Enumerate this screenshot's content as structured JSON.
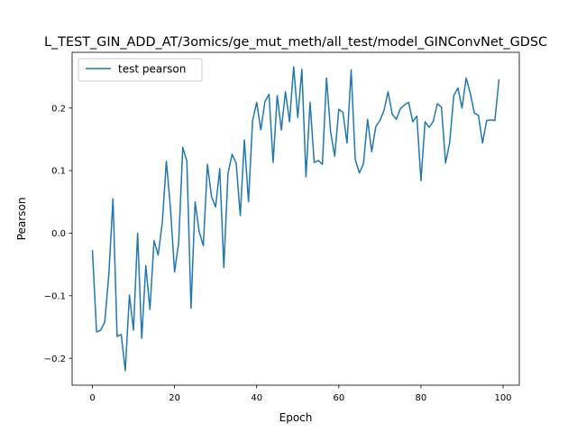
{
  "chart_data": {
    "type": "line",
    "title": "L_TEST_GIN_ADD_AT/3omics/ge_mut_meth/all_test/model_GINConvNet_GDSC",
    "xlabel": "Epoch",
    "ylabel": "Pearson",
    "xlim": [
      -4.95,
      103.95
    ],
    "ylim": [
      -0.243,
      0.289
    ],
    "xticks": [
      0,
      20,
      40,
      60,
      80,
      100
    ],
    "yticks": [
      -0.2,
      -0.1,
      0.0,
      0.1,
      0.2
    ],
    "ytick_labels": [
      "−0.2",
      "−0.1",
      "0.0",
      "0.1",
      "0.2"
    ],
    "grid": false,
    "legend_position": "top-left",
    "colors": {
      "series": "#1f77b4"
    },
    "series": [
      {
        "name": "test pearson",
        "x": [
          0,
          1,
          2,
          3,
          4,
          5,
          6,
          7,
          8,
          9,
          10,
          11,
          12,
          13,
          14,
          15,
          16,
          17,
          18,
          19,
          20,
          21,
          22,
          23,
          24,
          25,
          26,
          27,
          28,
          29,
          30,
          31,
          32,
          33,
          34,
          35,
          36,
          37,
          38,
          39,
          40,
          41,
          42,
          43,
          44,
          45,
          46,
          47,
          48,
          49,
          50,
          51,
          52,
          53,
          54,
          55,
          56,
          57,
          58,
          59,
          60,
          61,
          62,
          63,
          64,
          65,
          66,
          67,
          68,
          69,
          70,
          71,
          72,
          73,
          74,
          75,
          76,
          77,
          78,
          79,
          80,
          81,
          82,
          83,
          84,
          85,
          86,
          87,
          88,
          89,
          90,
          91,
          92,
          93,
          94,
          95,
          96,
          97,
          98,
          99
        ],
        "values": [
          -0.028,
          -0.158,
          -0.155,
          -0.142,
          -0.065,
          0.055,
          -0.165,
          -0.162,
          -0.22,
          -0.099,
          -0.155,
          0.0,
          -0.168,
          -0.052,
          -0.122,
          -0.012,
          -0.035,
          0.016,
          0.115,
          0.04,
          -0.062,
          -0.015,
          0.137,
          0.115,
          -0.12,
          0.05,
          0.002,
          -0.02,
          0.11,
          0.058,
          0.042,
          0.103,
          -0.055,
          0.095,
          0.126,
          0.112,
          0.028,
          0.149,
          0.05,
          0.18,
          0.209,
          0.165,
          0.21,
          0.222,
          0.113,
          0.22,
          0.165,
          0.226,
          0.178,
          0.266,
          0.185,
          0.262,
          0.09,
          0.209,
          0.113,
          0.116,
          0.11,
          0.248,
          0.162,
          0.123,
          0.198,
          0.193,
          0.144,
          0.261,
          0.118,
          0.096,
          0.111,
          0.182,
          0.13,
          0.17,
          0.18,
          0.196,
          0.226,
          0.19,
          0.182,
          0.199,
          0.205,
          0.209,
          0.178,
          0.187,
          0.084,
          0.178,
          0.169,
          0.179,
          0.207,
          0.201,
          0.112,
          0.145,
          0.22,
          0.232,
          0.2,
          0.248,
          0.224,
          0.192,
          0.188,
          0.144,
          0.18,
          0.181,
          0.18,
          0.245
        ]
      }
    ]
  }
}
